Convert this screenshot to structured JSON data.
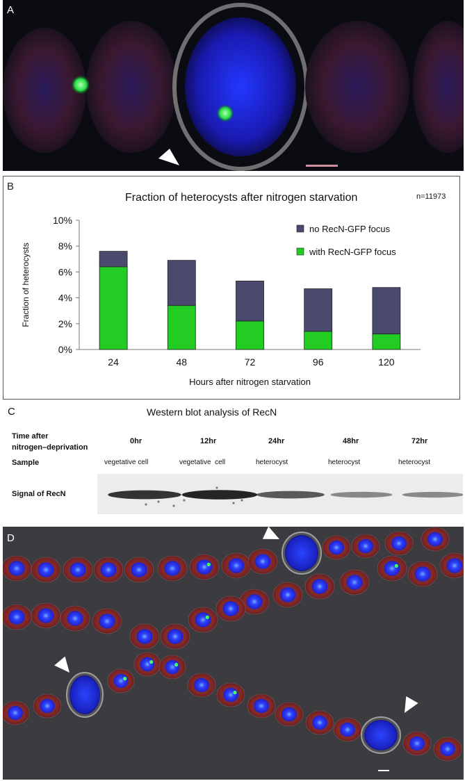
{
  "panel_a": {
    "label": "A"
  },
  "panel_b": {
    "label": "B",
    "n_label": "n=11973"
  },
  "chart_data": {
    "type": "bar",
    "stacked": true,
    "title": "Fraction of heterocysts after nitrogen starvation",
    "xlabel": "Hours after nitrogen starvation",
    "ylabel": "Fraction of heterocysts",
    "categories": [
      "24",
      "48",
      "72",
      "96",
      "120"
    ],
    "ylim": [
      0,
      10
    ],
    "yticks": [
      "0%",
      "2%",
      "4%",
      "6%",
      "8%",
      "10%"
    ],
    "series": [
      {
        "name": "with RecN-GFP focus",
        "values": [
          6.4,
          3.4,
          2.2,
          1.4,
          1.2
        ],
        "color": "#22cc22"
      },
      {
        "name": "no RecN-GFP focus",
        "values": [
          1.2,
          3.5,
          3.1,
          3.3,
          3.6
        ],
        "color": "#4a4a6e"
      }
    ],
    "legend_position": "top-right",
    "grid": false
  },
  "panel_c": {
    "label": "C",
    "title": "Western blot analysis of RecN",
    "row_time_label_1": "Time after",
    "row_time_label_2": "nitrogen–deprivation",
    "row_sample_label": "Sample",
    "row_signal_label": "Signal of RecN",
    "lanes": [
      {
        "time": "0hr",
        "sample": "vegetative cell",
        "intensity": 0.85
      },
      {
        "time": "12hr",
        "sample": "vegetative  cell",
        "intensity": 0.95
      },
      {
        "time": "24hr",
        "sample": "heterocyst",
        "intensity": 0.6
      },
      {
        "time": "48hr",
        "sample": "heterocyst",
        "intensity": 0.3
      },
      {
        "time": "72hr",
        "sample": "heterocyst",
        "intensity": 0.28
      }
    ]
  },
  "panel_d": {
    "label": "D"
  },
  "colors": {
    "cell_red": "#8a2a2a",
    "nucleus_blue": "#2222dd",
    "gfp_green": "#33ff66",
    "heterocyst_blue": "#1c2bd8"
  }
}
